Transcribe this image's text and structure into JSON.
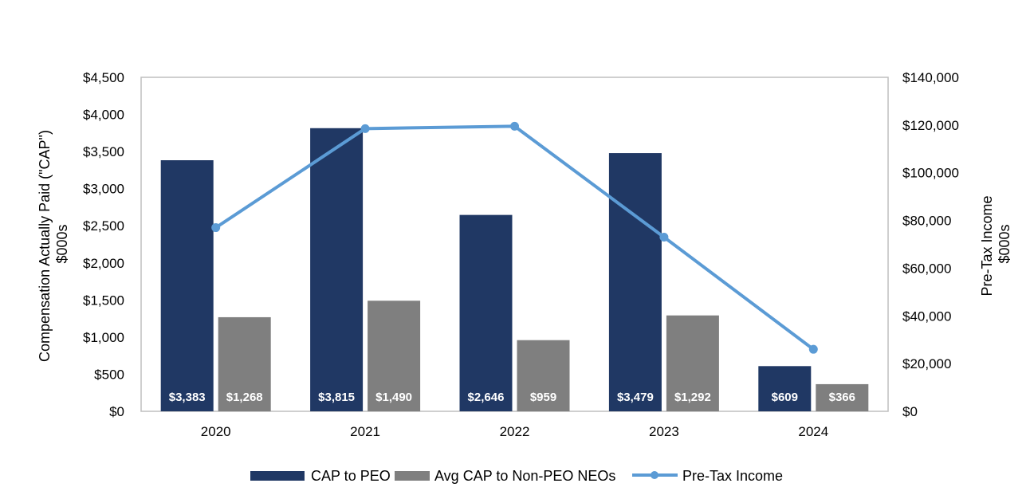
{
  "chart_data": {
    "type": "bar",
    "categories": [
      "2020",
      "2021",
      "2022",
      "2023",
      "2024"
    ],
    "series": [
      {
        "name": "CAP to PEO",
        "type": "bar",
        "axis": "left",
        "color": "#203864",
        "values": [
          3383,
          3815,
          2646,
          3479,
          609
        ],
        "labels": [
          "$3,383",
          "$3,815",
          "$2,646",
          "$3,479",
          "$609"
        ]
      },
      {
        "name": "Avg CAP to Non-PEO NEOs",
        "type": "bar",
        "axis": "left",
        "color": "#7f7f7f",
        "values": [
          1268,
          1490,
          959,
          1292,
          366
        ],
        "labels": [
          "$1,268",
          "$1,490",
          "$959",
          "$1,292",
          "$366"
        ]
      },
      {
        "name": "Pre-Tax Income",
        "type": "line",
        "axis": "right",
        "color": "#5b9bd5",
        "values": [
          77000,
          118500,
          119500,
          73000,
          26000
        ]
      }
    ],
    "y_left": {
      "label_line1": "Compensation Actually Paid (\"CAP\")",
      "label_line2": "$000s",
      "range": [
        0,
        4500
      ],
      "ticks": [
        "$0",
        "$500",
        "$1,000",
        "$1,500",
        "$2,000",
        "$2,500",
        "$3,000",
        "$3,500",
        "$4,000",
        "$4,500"
      ]
    },
    "y_right": {
      "label_line1": "Pre-Tax Income",
      "label_line2": "$000s",
      "range": [
        0,
        140000
      ],
      "ticks": [
        "$0",
        "$20,000",
        "$40,000",
        "$60,000",
        "$80,000",
        "$100,000",
        "$120,000",
        "$140,000"
      ]
    },
    "grid": false,
    "legend": "bottom-center",
    "legend_items": [
      "CAP to PEO",
      "Avg CAP to Non-PEO NEOs",
      "Pre-Tax Income"
    ]
  }
}
